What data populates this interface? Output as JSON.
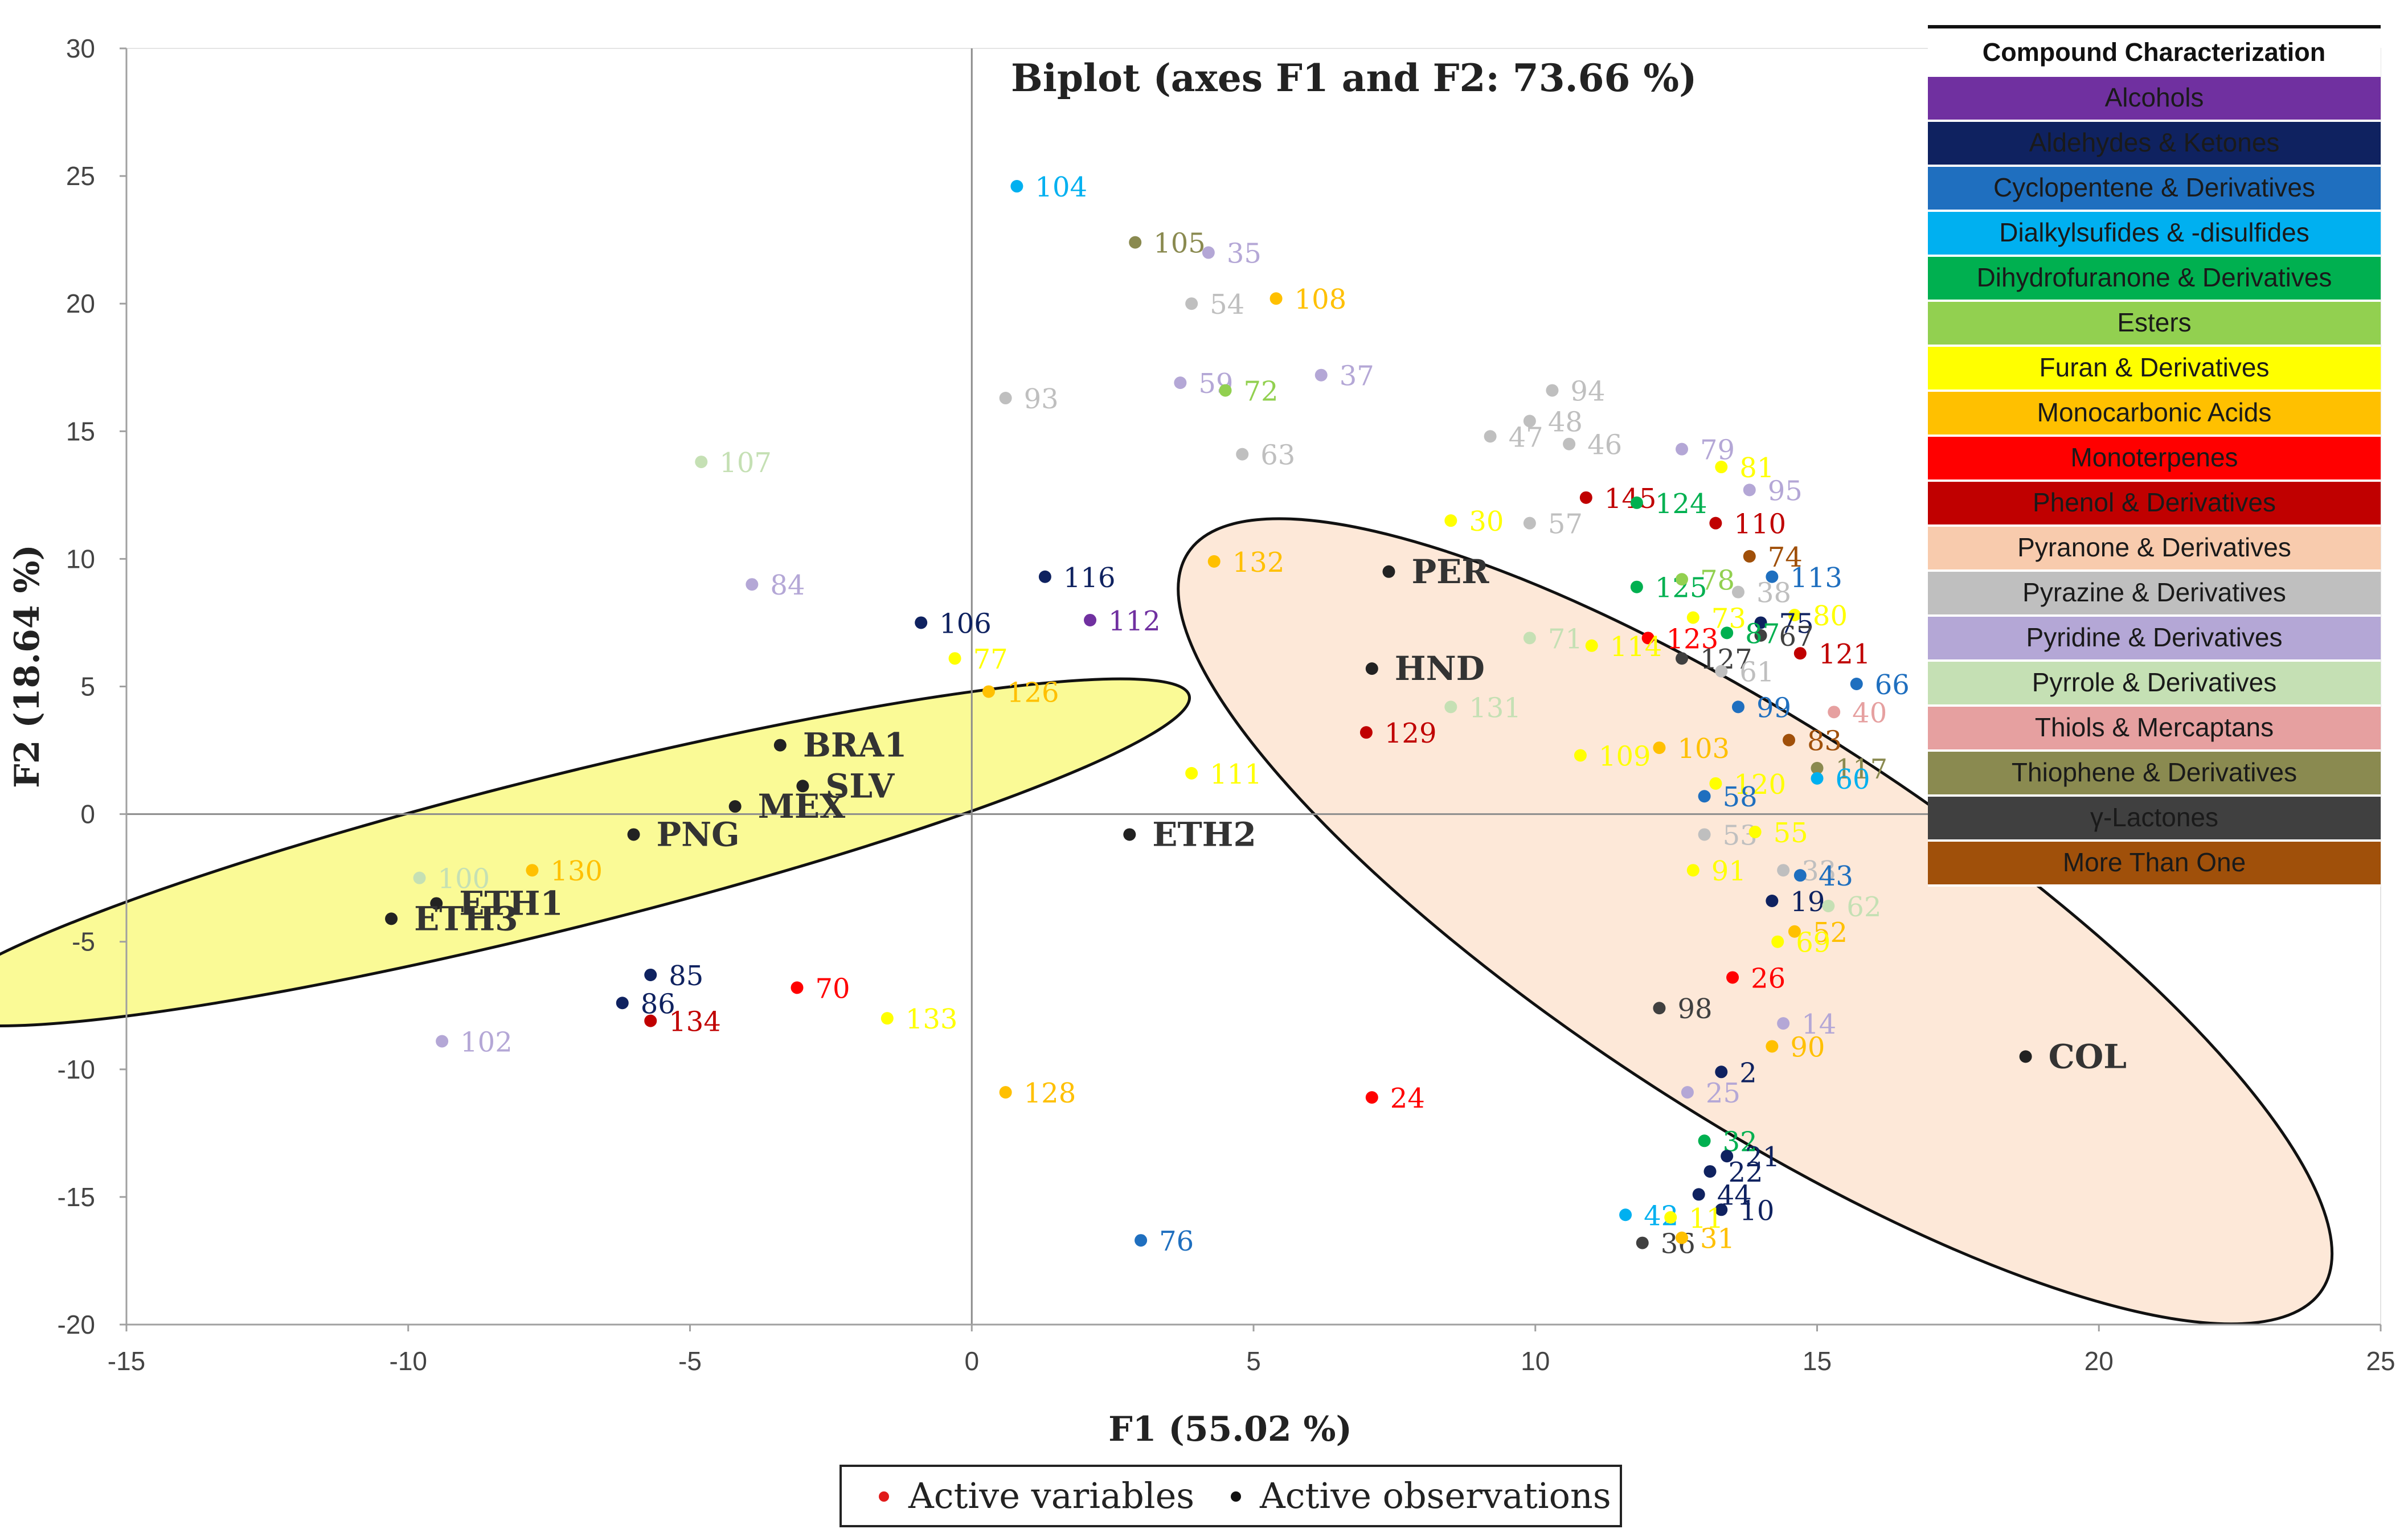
{
  "chart_data": {
    "type": "scatter",
    "title": "Biplot (axes F1 and F2: 73.66 %)",
    "xlabel": "F1 (55.02 %)",
    "ylabel": "F2 (18.64 %)",
    "xlim": [
      -15,
      25
    ],
    "ylim": [
      -20,
      30
    ],
    "xticks": [
      -15,
      -10,
      -5,
      0,
      5,
      10,
      15,
      20,
      25
    ],
    "yticks": [
      -20,
      -15,
      -10,
      -5,
      0,
      5,
      10,
      15,
      20,
      25,
      30
    ],
    "grid": false,
    "legend": {
      "position": "bottom-center",
      "items": [
        {
          "label": "Active variables",
          "color": "#e11b1b"
        },
        {
          "label": "Active observations",
          "color": "#111111"
        }
      ]
    },
    "category_legend": {
      "position": "top-right",
      "title": "Compound Characterization",
      "items": [
        {
          "label": "Alcohols",
          "color": "#7030a0"
        },
        {
          "label": "Aldehydes & Ketones",
          "color": "#0f2260"
        },
        {
          "label": "Cyclopentene & Derivatives",
          "color": "#1f6fbf"
        },
        {
          "label": "Dialkylsufides & -disulfides",
          "color": "#00b0f0"
        },
        {
          "label": "Dihydrofuranone & Derivatives",
          "color": "#00b050"
        },
        {
          "label": "Esters",
          "color": "#92d050"
        },
        {
          "label": "Furan & Derivatives",
          "color": "#ffff00"
        },
        {
          "label": "Monocarbonic Acids",
          "color": "#ffc000"
        },
        {
          "label": "Monoterpenes",
          "color": "#ff0000"
        },
        {
          "label": "Phenol & Derivatives",
          "color": "#c00000"
        },
        {
          "label": "Pyranone & Derivatives",
          "color": "#f8cbad"
        },
        {
          "label": "Pyrazine & Derivatives",
          "color": "#bfbfbf"
        },
        {
          "label": "Pyridine & Derivatives",
          "color": "#b4a7d6"
        },
        {
          "label": "Pyrrole & Derivatives",
          "color": "#c5e0b4"
        },
        {
          "label": "Thiols & Mercaptans",
          "color": "#e6a0a0"
        },
        {
          "label": "Thiophene & Derivatives",
          "color": "#8a8a50"
        },
        {
          "label": "γ-Lactones",
          "color": "#404040"
        },
        {
          "label": "More Than One",
          "color": "#a0500a"
        }
      ]
    },
    "ellipses": [
      {
        "name": "group-left",
        "fill": "#fafa96",
        "cx": -7.3,
        "cy": -1.5,
        "rx": 11.5,
        "ry": 3.0,
        "angle_deg": 14
      },
      {
        "name": "group-right",
        "fill": "#fde8d8",
        "cx": 13.9,
        "cy": -4.2,
        "rx": 12.0,
        "ry": 7.6,
        "angle_deg": -33
      }
    ],
    "observations": [
      {
        "label": "PER",
        "x": 7.4,
        "y": 9.5
      },
      {
        "label": "HND",
        "x": 7.1,
        "y": 5.7
      },
      {
        "label": "ETH2",
        "x": 2.8,
        "y": -0.8
      },
      {
        "label": "COL",
        "x": 18.7,
        "y": -9.5
      },
      {
        "label": "BRA1",
        "x": -3.4,
        "y": 2.7
      },
      {
        "label": "MEX",
        "x": -4.2,
        "y": 0.3
      },
      {
        "label": "PNG",
        "x": -6.0,
        "y": -0.8
      },
      {
        "label": "SLV",
        "x": -3.0,
        "y": 1.1
      },
      {
        "label": "ETH1",
        "x": -9.5,
        "y": -3.5
      },
      {
        "label": "ETH3",
        "x": -10.3,
        "y": -4.1
      }
    ],
    "variables": [
      {
        "label": "104",
        "x": 0.8,
        "y": 24.6,
        "color": "#00b0f0"
      },
      {
        "label": "105",
        "x": 2.9,
        "y": 22.4,
        "color": "#8a8a50"
      },
      {
        "label": "35",
        "x": 4.2,
        "y": 22.0,
        "color": "#b4a7d6"
      },
      {
        "label": "54",
        "x": 3.9,
        "y": 20.0,
        "color": "#bfbfbf"
      },
      {
        "label": "108",
        "x": 5.4,
        "y": 20.2,
        "color": "#ffc000"
      },
      {
        "label": "59",
        "x": 3.7,
        "y": 16.9,
        "color": "#b4a7d6"
      },
      {
        "label": "72",
        "x": 4.5,
        "y": 16.6,
        "color": "#92d050"
      },
      {
        "label": "37",
        "x": 6.2,
        "y": 17.2,
        "color": "#b4a7d6"
      },
      {
        "label": "93",
        "x": 0.6,
        "y": 16.3,
        "color": "#bfbfbf"
      },
      {
        "label": "63",
        "x": 4.8,
        "y": 14.1,
        "color": "#bfbfbf"
      },
      {
        "label": "107",
        "x": -4.8,
        "y": 13.8,
        "color": "#c5e0b4"
      },
      {
        "label": "84",
        "x": -3.9,
        "y": 9.0,
        "color": "#b4a7d6"
      },
      {
        "label": "106",
        "x": -0.9,
        "y": 7.5,
        "color": "#0f2260"
      },
      {
        "label": "116",
        "x": 1.3,
        "y": 9.3,
        "color": "#0f2260"
      },
      {
        "label": "112",
        "x": 2.1,
        "y": 7.6,
        "color": "#7030a0"
      },
      {
        "label": "132",
        "x": 4.3,
        "y": 9.9,
        "color": "#ffc000"
      },
      {
        "label": "77",
        "x": -0.3,
        "y": 6.1,
        "color": "#ffff00"
      },
      {
        "label": "126",
        "x": 0.3,
        "y": 4.8,
        "color": "#ffc000"
      },
      {
        "label": "111",
        "x": 3.9,
        "y": 1.6,
        "color": "#ffff00"
      },
      {
        "label": "129",
        "x": 7.0,
        "y": 3.2,
        "color": "#c00000"
      },
      {
        "label": "131",
        "x": 8.5,
        "y": 4.2,
        "color": "#c5e0b4"
      },
      {
        "label": "30",
        "x": 8.5,
        "y": 11.5,
        "color": "#ffff00"
      },
      {
        "label": "71",
        "x": 9.9,
        "y": 6.9,
        "color": "#c5e0b4"
      },
      {
        "label": "94",
        "x": 10.3,
        "y": 16.6,
        "color": "#bfbfbf"
      },
      {
        "label": "48",
        "x": 9.9,
        "y": 15.4,
        "color": "#bfbfbf"
      },
      {
        "label": "47",
        "x": 9.2,
        "y": 14.8,
        "color": "#bfbfbf"
      },
      {
        "label": "46",
        "x": 10.6,
        "y": 14.5,
        "color": "#bfbfbf"
      },
      {
        "label": "57",
        "x": 9.9,
        "y": 11.4,
        "color": "#bfbfbf"
      },
      {
        "label": "145",
        "x": 10.9,
        "y": 12.4,
        "color": "#c00000"
      },
      {
        "label": "124",
        "x": 11.8,
        "y": 12.2,
        "color": "#00b050"
      },
      {
        "label": "79",
        "x": 12.6,
        "y": 14.3,
        "color": "#b4a7d6"
      },
      {
        "label": "81",
        "x": 13.3,
        "y": 13.6,
        "color": "#ffff00"
      },
      {
        "label": "95",
        "x": 13.8,
        "y": 12.7,
        "color": "#b4a7d6"
      },
      {
        "label": "110",
        "x": 13.2,
        "y": 11.4,
        "color": "#c00000"
      },
      {
        "label": "125",
        "x": 11.8,
        "y": 8.9,
        "color": "#00b050"
      },
      {
        "label": "78",
        "x": 12.6,
        "y": 9.2,
        "color": "#92d050"
      },
      {
        "label": "74",
        "x": 13.8,
        "y": 10.1,
        "color": "#a0500a"
      },
      {
        "label": "38",
        "x": 13.6,
        "y": 8.7,
        "color": "#bfbfbf"
      },
      {
        "label": "113",
        "x": 14.2,
        "y": 9.3,
        "color": "#1f6fbf"
      },
      {
        "label": "73",
        "x": 12.8,
        "y": 7.7,
        "color": "#ffff00"
      },
      {
        "label": "80",
        "x": 14.6,
        "y": 7.8,
        "color": "#ffff00"
      },
      {
        "label": "75",
        "x": 14.0,
        "y": 7.5,
        "color": "#0f2260"
      },
      {
        "label": "67",
        "x": 14.0,
        "y": 7.0,
        "color": "#404040"
      },
      {
        "label": "87",
        "x": 13.4,
        "y": 7.1,
        "color": "#00b050"
      },
      {
        "label": "123",
        "x": 12.0,
        "y": 6.9,
        "color": "#ff0000"
      },
      {
        "label": "114",
        "x": 11.0,
        "y": 6.6,
        "color": "#ffff00"
      },
      {
        "label": "121",
        "x": 14.7,
        "y": 6.3,
        "color": "#c00000"
      },
      {
        "label": "127",
        "x": 12.6,
        "y": 6.1,
        "color": "#404040"
      },
      {
        "label": "61",
        "x": 13.3,
        "y": 5.6,
        "color": "#bfbfbf"
      },
      {
        "label": "66",
        "x": 15.7,
        "y": 5.1,
        "color": "#1f6fbf"
      },
      {
        "label": "99",
        "x": 13.6,
        "y": 4.2,
        "color": "#1f6fbf"
      },
      {
        "label": "40",
        "x": 15.3,
        "y": 4.0,
        "color": "#e6a0a0"
      },
      {
        "label": "83",
        "x": 14.5,
        "y": 2.9,
        "color": "#a0500a"
      },
      {
        "label": "109",
        "x": 10.8,
        "y": 2.3,
        "color": "#ffff00"
      },
      {
        "label": "103",
        "x": 12.2,
        "y": 2.6,
        "color": "#ffc000"
      },
      {
        "label": "117",
        "x": 15.0,
        "y": 1.8,
        "color": "#8a8a50"
      },
      {
        "label": "60",
        "x": 15.0,
        "y": 1.4,
        "color": "#00b0f0"
      },
      {
        "label": "120",
        "x": 13.2,
        "y": 1.2,
        "color": "#ffff00"
      },
      {
        "label": "58",
        "x": 13.0,
        "y": 0.7,
        "color": "#1f6fbf"
      },
      {
        "label": "53",
        "x": 13.0,
        "y": -0.8,
        "color": "#bfbfbf"
      },
      {
        "label": "55",
        "x": 13.9,
        "y": -0.7,
        "color": "#ffff00"
      },
      {
        "label": "91",
        "x": 12.8,
        "y": -2.2,
        "color": "#ffff00"
      },
      {
        "label": "33",
        "x": 14.4,
        "y": -2.2,
        "color": "#bfbfbf"
      },
      {
        "label": "43",
        "x": 14.7,
        "y": -2.4,
        "color": "#1f6fbf"
      },
      {
        "label": "19",
        "x": 14.2,
        "y": -3.4,
        "color": "#0f2260"
      },
      {
        "label": "62",
        "x": 15.2,
        "y": -3.6,
        "color": "#c5e0b4"
      },
      {
        "label": "52",
        "x": 14.6,
        "y": -4.6,
        "color": "#ffc000"
      },
      {
        "label": "69",
        "x": 14.3,
        "y": -5.0,
        "color": "#ffff00"
      },
      {
        "label": "26",
        "x": 13.5,
        "y": -6.4,
        "color": "#ff0000"
      },
      {
        "label": "98",
        "x": 12.2,
        "y": -7.6,
        "color": "#404040"
      },
      {
        "label": "14",
        "x": 14.4,
        "y": -8.2,
        "color": "#b4a7d6"
      },
      {
        "label": "90",
        "x": 14.2,
        "y": -9.1,
        "color": "#ffc000"
      },
      {
        "label": "2",
        "x": 13.3,
        "y": -10.1,
        "color": "#0f2260"
      },
      {
        "label": "25",
        "x": 12.7,
        "y": -10.9,
        "color": "#b4a7d6"
      },
      {
        "label": "24",
        "x": 7.1,
        "y": -11.1,
        "color": "#ff0000"
      },
      {
        "label": "32",
        "x": 13.0,
        "y": -12.8,
        "color": "#00b050"
      },
      {
        "label": "21",
        "x": 13.4,
        "y": -13.4,
        "color": "#0f2260"
      },
      {
        "label": "22",
        "x": 13.1,
        "y": -14.0,
        "color": "#0f2260"
      },
      {
        "label": "44",
        "x": 12.9,
        "y": -14.9,
        "color": "#0f2260"
      },
      {
        "label": "10",
        "x": 13.3,
        "y": -15.5,
        "color": "#0f2260"
      },
      {
        "label": "42",
        "x": 11.6,
        "y": -15.7,
        "color": "#00b0f0"
      },
      {
        "label": "11",
        "x": 12.4,
        "y": -15.8,
        "color": "#ffff00"
      },
      {
        "label": "36",
        "x": 11.9,
        "y": -16.8,
        "color": "#404040"
      },
      {
        "label": "31",
        "x": 12.6,
        "y": -16.6,
        "color": "#ffc000"
      },
      {
        "label": "76",
        "x": 3.0,
        "y": -16.7,
        "color": "#1f6fbf"
      },
      {
        "label": "128",
        "x": 0.6,
        "y": -10.9,
        "color": "#ffc000"
      },
      {
        "label": "133",
        "x": -1.5,
        "y": -8.0,
        "color": "#ffff00"
      },
      {
        "label": "70",
        "x": -3.1,
        "y": -6.8,
        "color": "#ff0000"
      },
      {
        "label": "85",
        "x": -5.7,
        "y": -6.3,
        "color": "#0f2260"
      },
      {
        "label": "86",
        "x": -6.2,
        "y": -7.4,
        "color": "#0f2260"
      },
      {
        "label": "134",
        "x": -5.7,
        "y": -8.1,
        "color": "#c00000"
      },
      {
        "label": "102",
        "x": -9.4,
        "y": -8.9,
        "color": "#b4a7d6"
      },
      {
        "label": "100",
        "x": -9.8,
        "y": -2.5,
        "color": "#c5e0b4"
      },
      {
        "label": "130",
        "x": -7.8,
        "y": -2.2,
        "color": "#ffc000"
      }
    ]
  }
}
